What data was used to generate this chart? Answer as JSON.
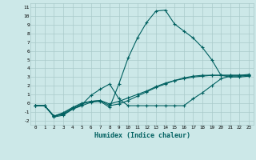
{
  "xlabel": "Humidex (Indice chaleur)",
  "ylabel": "",
  "bg_color": "#cce8e8",
  "grid_color": "#aacaca",
  "line_color": "#006060",
  "xlim": [
    -0.5,
    23.5
  ],
  "ylim": [
    -2.5,
    11.5
  ],
  "xticks": [
    0,
    1,
    2,
    3,
    4,
    5,
    6,
    7,
    8,
    9,
    10,
    11,
    12,
    13,
    14,
    15,
    16,
    17,
    18,
    19,
    20,
    21,
    22,
    23
  ],
  "yticks": [
    -2,
    -1,
    0,
    1,
    2,
    3,
    4,
    5,
    6,
    7,
    8,
    9,
    10,
    11
  ],
  "series1_x": [
    0,
    1,
    2,
    3,
    4,
    5,
    6,
    7,
    8,
    9,
    10,
    11,
    12,
    13,
    14,
    15,
    16,
    17,
    18,
    19,
    20,
    21,
    22,
    23
  ],
  "series1_y": [
    -0.3,
    -0.3,
    -1.5,
    -1.3,
    -0.7,
    -0.3,
    0.1,
    0.2,
    -0.5,
    2.2,
    5.2,
    7.5,
    9.3,
    10.6,
    10.7,
    9.1,
    8.3,
    7.5,
    6.4,
    5.0,
    3.2,
    3.0,
    3.0,
    3.1
  ],
  "series2_x": [
    0,
    1,
    2,
    3,
    4,
    5,
    6,
    7,
    8,
    9,
    10,
    11,
    12,
    13,
    14,
    15,
    16,
    17,
    18,
    19,
    20,
    21,
    22,
    23
  ],
  "series2_y": [
    -0.3,
    -0.3,
    -1.6,
    -1.4,
    -0.7,
    -0.2,
    0.9,
    1.6,
    2.2,
    0.5,
    -0.3,
    -0.3,
    -0.3,
    -0.3,
    -0.3,
    -0.3,
    -0.3,
    0.5,
    1.2,
    2.0,
    2.8,
    3.1,
    3.1,
    3.2
  ],
  "series3_x": [
    0,
    1,
    2,
    3,
    4,
    5,
    6,
    7,
    8,
    9,
    10,
    11,
    12,
    13,
    14,
    15,
    16,
    17,
    18,
    19,
    20,
    21,
    22,
    23
  ],
  "series3_y": [
    -0.3,
    -0.3,
    -1.5,
    -1.2,
    -0.6,
    -0.1,
    0.2,
    0.3,
    -0.3,
    -0.1,
    0.3,
    0.8,
    1.3,
    1.8,
    2.2,
    2.6,
    2.9,
    3.1,
    3.2,
    3.2,
    3.2,
    3.2,
    3.2,
    3.2
  ],
  "series4_x": [
    0,
    1,
    2,
    3,
    4,
    5,
    6,
    7,
    8,
    9,
    10,
    11,
    12,
    13,
    14,
    15,
    16,
    17,
    18,
    19,
    20,
    21,
    22,
    23
  ],
  "series4_y": [
    -0.3,
    -0.3,
    -1.5,
    -1.1,
    -0.5,
    0.0,
    0.2,
    0.3,
    -0.1,
    0.2,
    0.6,
    1.0,
    1.4,
    1.9,
    2.3,
    2.6,
    2.8,
    3.0,
    3.1,
    3.2,
    3.2,
    3.2,
    3.2,
    3.3
  ]
}
